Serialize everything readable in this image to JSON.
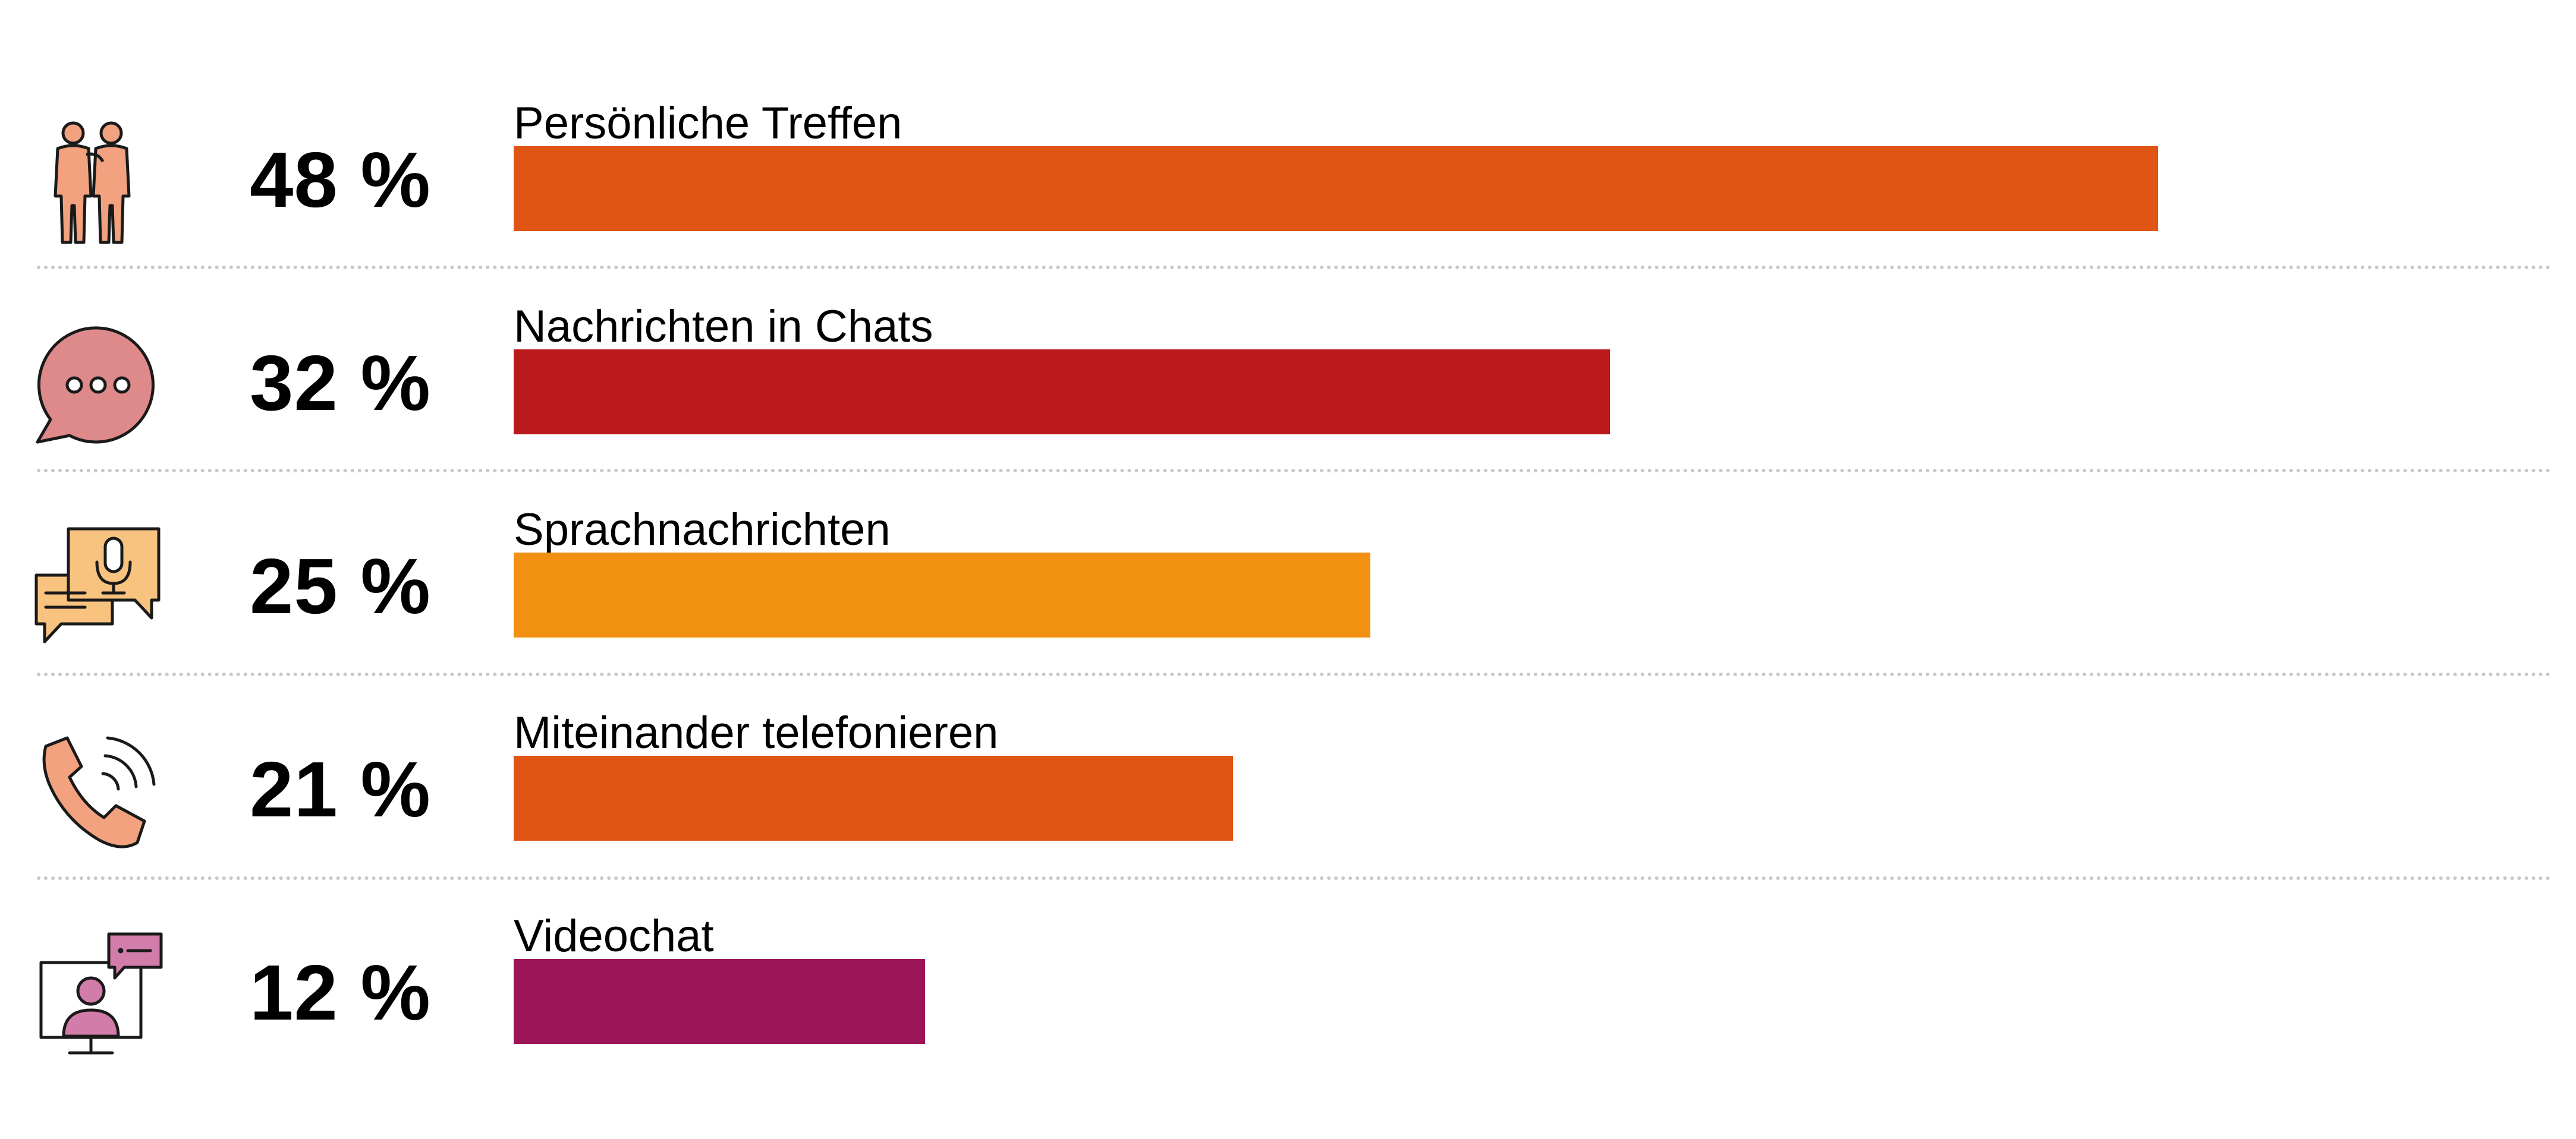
{
  "chart_data": {
    "type": "bar",
    "orientation": "horizontal",
    "categories": [
      "Persönliche Treffen",
      "Nachrichten in Chats",
      "Sprachnachrichten",
      "Miteinander telefonieren",
      "Videochat"
    ],
    "values": [
      48,
      32,
      25,
      21,
      12
    ],
    "value_labels": [
      "48 %",
      "32 %",
      "25 %",
      "21 %",
      "12 %"
    ],
    "unit": "%",
    "xlim": [
      0,
      60
    ],
    "grid": false,
    "legend": "none",
    "bar_colors": [
      "#E05414",
      "#BA1A1C",
      "#F29111",
      "#E05414",
      "#9C1559"
    ],
    "icons": [
      "two-people-icon",
      "chat-bubble-icon",
      "voice-message-icon",
      "phone-call-icon",
      "video-chat-icon"
    ],
    "icon_colors": {
      "people": "#F2A27F",
      "chat": "#DE8A8A",
      "voice": "#F7C37E",
      "phone": "#F2A27F",
      "video": "#D27CAA"
    }
  }
}
